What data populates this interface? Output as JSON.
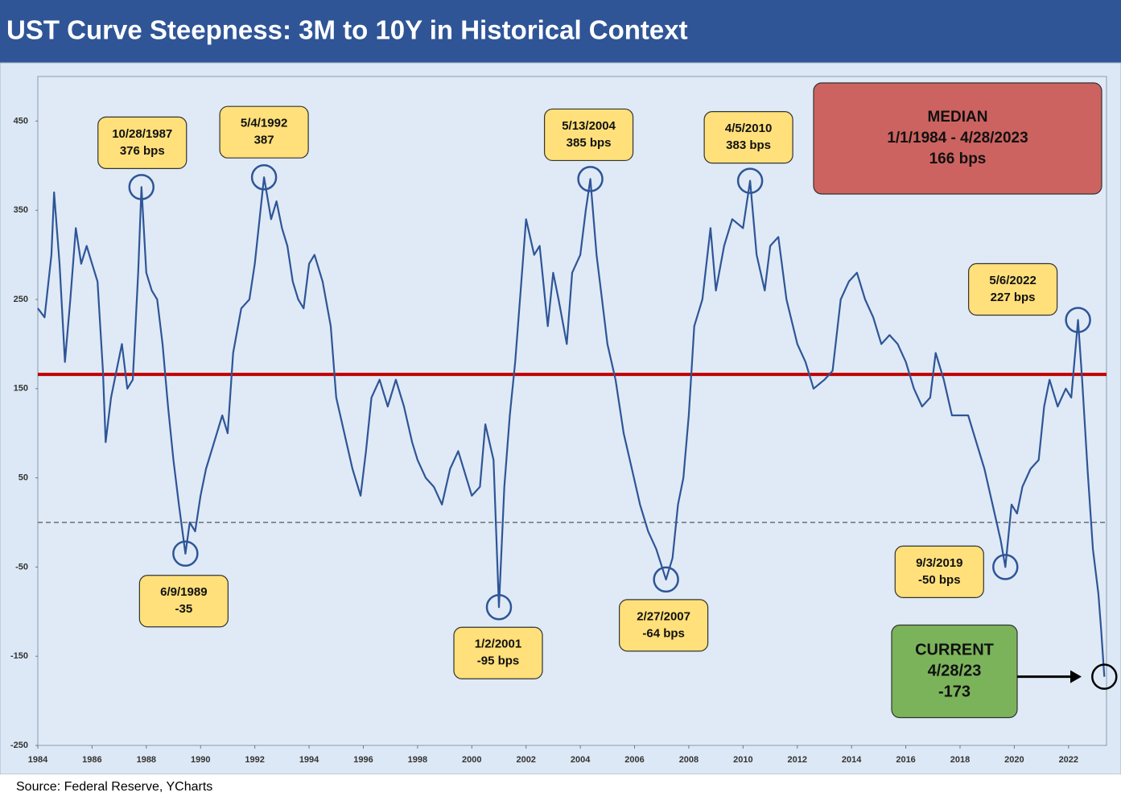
{
  "chart_data": {
    "type": "line",
    "title": "UST Curve Steepness: 3M to 10Y in Historical Context",
    "source": "Source: Federal Reserve, YCharts",
    "x": [
      1984.0,
      1984.25,
      1984.5,
      1984.6,
      1984.8,
      1985.0,
      1985.2,
      1985.4,
      1985.6,
      1985.8,
      1986.0,
      1986.2,
      1986.4,
      1986.5,
      1986.7,
      1986.9,
      1987.1,
      1987.3,
      1987.5,
      1987.7,
      1987.82,
      1988.0,
      1988.2,
      1988.4,
      1988.6,
      1988.8,
      1989.0,
      1989.2,
      1989.44,
      1989.6,
      1989.8,
      1990.0,
      1990.2,
      1990.5,
      1990.8,
      1991.0,
      1991.2,
      1991.5,
      1991.8,
      1992.0,
      1992.34,
      1992.6,
      1992.8,
      1993.0,
      1993.2,
      1993.4,
      1993.6,
      1993.8,
      1994.0,
      1994.2,
      1994.5,
      1994.8,
      1995.0,
      1995.3,
      1995.6,
      1995.9,
      1996.1,
      1996.3,
      1996.6,
      1996.9,
      1997.2,
      1997.5,
      1997.8,
      1998.0,
      1998.3,
      1998.6,
      1998.9,
      1999.2,
      1999.5,
      1999.8,
      2000.0,
      2000.3,
      2000.5,
      2000.8,
      2001.0,
      2001.2,
      2001.4,
      2001.6,
      2001.8,
      2002.0,
      2002.3,
      2002.5,
      2002.8,
      2003.0,
      2003.2,
      2003.5,
      2003.7,
      2004.0,
      2004.2,
      2004.37,
      2004.6,
      2004.8,
      2005.0,
      2005.3,
      2005.6,
      2005.9,
      2006.2,
      2006.5,
      2006.8,
      2007.16,
      2007.4,
      2007.6,
      2007.8,
      2008.0,
      2008.2,
      2008.5,
      2008.8,
      2009.0,
      2009.3,
      2009.6,
      2010.0,
      2010.26,
      2010.5,
      2010.8,
      2011.0,
      2011.3,
      2011.6,
      2012.0,
      2012.3,
      2012.6,
      2013.0,
      2013.3,
      2013.6,
      2013.9,
      2014.2,
      2014.5,
      2014.8,
      2015.1,
      2015.4,
      2015.7,
      2016.0,
      2016.3,
      2016.6,
      2016.9,
      2017.1,
      2017.4,
      2017.7,
      2018.0,
      2018.3,
      2018.6,
      2018.9,
      2019.2,
      2019.5,
      2019.67,
      2019.9,
      2020.1,
      2020.3,
      2020.6,
      2020.9,
      2021.1,
      2021.3,
      2021.6,
      2021.9,
      2022.1,
      2022.35,
      2022.5,
      2022.7,
      2022.9,
      2023.1,
      2023.2,
      2023.32
    ],
    "series": [
      {
        "color": "#2f5597",
        "values": [
          240,
          230,
          300,
          370,
          290,
          180,
          250,
          330,
          290,
          310,
          290,
          270,
          170,
          90,
          140,
          170,
          200,
          150,
          160,
          280,
          376,
          280,
          260,
          250,
          200,
          130,
          70,
          20,
          -35,
          0,
          -10,
          30,
          60,
          90,
          120,
          100,
          190,
          240,
          250,
          290,
          387,
          340,
          360,
          330,
          310,
          270,
          250,
          240,
          290,
          300,
          270,
          220,
          140,
          100,
          60,
          30,
          80,
          140,
          160,
          130,
          160,
          130,
          90,
          70,
          50,
          40,
          20,
          60,
          80,
          50,
          30,
          40,
          110,
          70,
          -95,
          40,
          120,
          180,
          260,
          340,
          300,
          310,
          220,
          280,
          250,
          200,
          280,
          300,
          350,
          385,
          300,
          250,
          200,
          160,
          100,
          60,
          20,
          -10,
          -30,
          -64,
          -40,
          20,
          50,
          120,
          220,
          250,
          330,
          260,
          310,
          340,
          330,
          383,
          300,
          260,
          310,
          320,
          250,
          200,
          180,
          150,
          160,
          170,
          250,
          270,
          280,
          250,
          230,
          200,
          210,
          200,
          180,
          150,
          130,
          140,
          190,
          160,
          120,
          120,
          120,
          90,
          60,
          20,
          -20,
          -50,
          20,
          10,
          40,
          60,
          70,
          130,
          160,
          130,
          150,
          140,
          227,
          160,
          60,
          -30,
          -80,
          -120,
          -173
        ]
      }
    ],
    "xlim": [
      1984,
      2023.4
    ],
    "xticks": [
      1984,
      1986,
      1988,
      1990,
      1992,
      1994,
      1996,
      1998,
      2000,
      2002,
      2004,
      2006,
      2008,
      2010,
      2012,
      2014,
      2016,
      2018,
      2020,
      2022
    ],
    "ylim": [
      -250,
      500
    ],
    "yticks": [
      -250,
      -150,
      -50,
      50,
      150,
      250,
      350,
      450
    ],
    "reference_lines": [
      {
        "value": 166,
        "color": "#c00000"
      },
      {
        "value": 0,
        "color": "#555555",
        "dashed": true
      }
    ],
    "median_box": {
      "lines": [
        "MEDIAN",
        "1/1/1984 - 4/28/2023",
        "166 bps"
      ]
    },
    "annotations": [
      {
        "lines": [
          "10/28/1987",
          "376 bps"
        ],
        "x": 1987.82,
        "y": 376
      },
      {
        "lines": [
          "5/4/1992",
          "387"
        ],
        "x": 1992.34,
        "y": 387
      },
      {
        "lines": [
          "6/9/1989",
          "-35"
        ],
        "x": 1989.44,
        "y": -35
      },
      {
        "lines": [
          "1/2/2001",
          "-95 bps"
        ],
        "x": 2001.0,
        "y": -95
      },
      {
        "lines": [
          "5/13/2004",
          "385 bps"
        ],
        "x": 2004.37,
        "y": 385
      },
      {
        "lines": [
          "2/27/2007",
          "-64 bps"
        ],
        "x": 2007.16,
        "y": -64
      },
      {
        "lines": [
          "4/5/2010",
          "383 bps"
        ],
        "x": 2010.26,
        "y": 383
      },
      {
        "lines": [
          "9/3/2019",
          "-50 bps"
        ],
        "x": 2019.67,
        "y": -50
      },
      {
        "lines": [
          "5/6/2022",
          "227 bps"
        ],
        "x": 2022.35,
        "y": 227
      }
    ],
    "current": {
      "lines": [
        "CURRENT",
        "4/28/23",
        "-173"
      ],
      "x": 2023.32,
      "y": -173
    }
  }
}
